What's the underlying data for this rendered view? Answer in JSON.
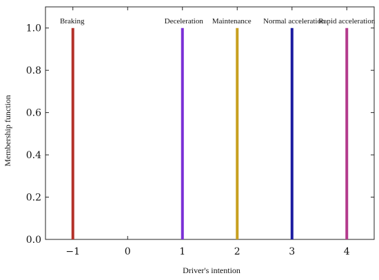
{
  "chart_data": {
    "type": "line",
    "xlabel": "Driver's intention",
    "ylabel": "Membership function",
    "xlim": [
      -1.5,
      4.5
    ],
    "ylim": [
      0,
      1.1
    ],
    "xticks": [
      -1,
      0,
      1,
      2,
      3,
      4
    ],
    "yticks": [
      0.0,
      0.2,
      0.4,
      0.6,
      0.8,
      1.0
    ],
    "xtick_labels": [
      "−1",
      "0",
      "1",
      "2",
      "3",
      "4"
    ],
    "ytick_labels": [
      "0.0",
      "0.2",
      "0.4",
      "0.6",
      "0.8",
      "1.0"
    ],
    "grid": false,
    "series": [
      {
        "x": -1,
        "y": [
          0,
          1
        ],
        "color": "#b3312a",
        "label": "Braking"
      },
      {
        "x": 1,
        "y": [
          0,
          1
        ],
        "color": "#7a2fd6",
        "label": "Deceleration"
      },
      {
        "x": 2,
        "y": [
          0,
          1
        ],
        "color": "#c8a020",
        "label": "Maintenance"
      },
      {
        "x": 3,
        "y": [
          0,
          1
        ],
        "color": "#1c1ca0",
        "label": "Normal acceleration"
      },
      {
        "x": 4,
        "y": [
          0,
          1
        ],
        "color": "#b33a8c",
        "label": "Rapid acceleration"
      }
    ]
  }
}
